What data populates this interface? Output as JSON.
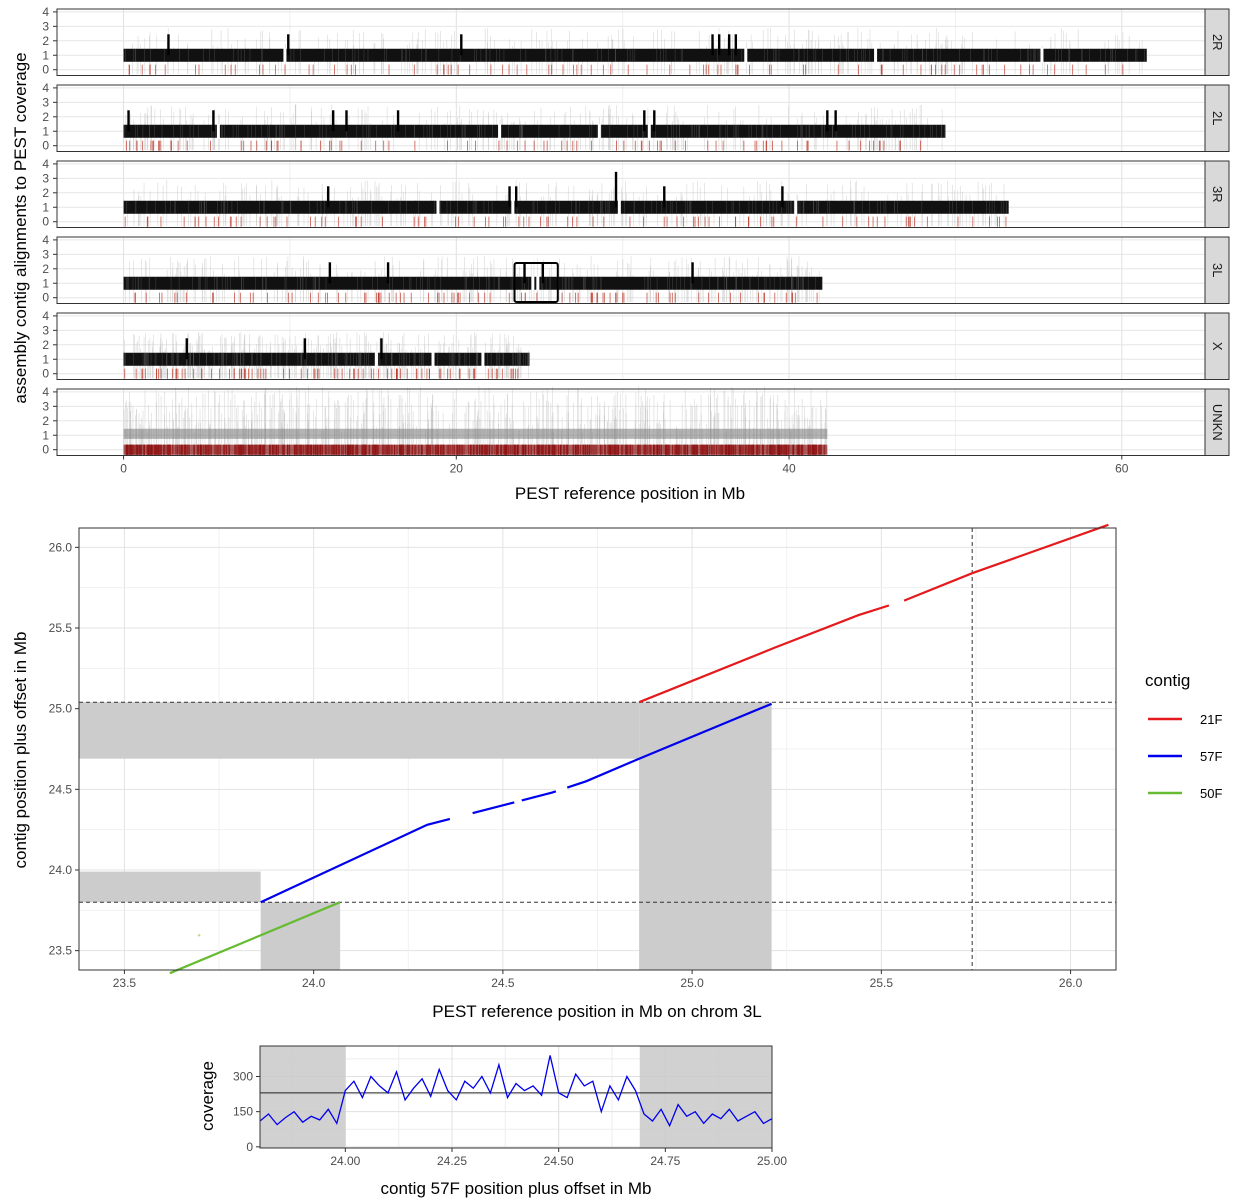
{
  "chart_data": [
    {
      "id": "coverage-facets",
      "type": "bar",
      "xlabel": "PEST reference position in Mb",
      "ylabel": "assembly contig alignments to PEST coverage",
      "xlim": [
        -4,
        65
      ],
      "ylim": [
        -0.4,
        4.2
      ],
      "x_ticks": [
        0,
        20,
        40,
        60
      ],
      "y_ticks": [
        0,
        1,
        2,
        3,
        4
      ],
      "grid": true,
      "facets": [
        {
          "name": "2R",
          "length": 61.5,
          "baseline": 1,
          "spikes": [
            {
              "x": 2.7,
              "y": 2
            },
            {
              "x": 9.9,
              "y": 2
            },
            {
              "x": 20.3,
              "y": 2
            },
            {
              "x": 35.4,
              "y": 2
            },
            {
              "x": 35.8,
              "y": 2
            },
            {
              "x": 36.4,
              "y": 2
            },
            {
              "x": 36.8,
              "y": 2
            }
          ],
          "gaps": [
            9.7,
            37.4,
            45.2,
            55.2
          ]
        },
        {
          "name": "2L",
          "length": 49.4,
          "baseline": 1,
          "spikes": [
            {
              "x": 0.3,
              "y": 2
            },
            {
              "x": 5.4,
              "y": 2
            },
            {
              "x": 12.6,
              "y": 2
            },
            {
              "x": 13.4,
              "y": 2
            },
            {
              "x": 16.5,
              "y": 2
            },
            {
              "x": 31.3,
              "y": 2
            },
            {
              "x": 31.9,
              "y": 2
            },
            {
              "x": 42.3,
              "y": 2
            },
            {
              "x": 42.8,
              "y": 2
            }
          ],
          "gaps": [
            5.7,
            22.6,
            28.6,
            31.6
          ]
        },
        {
          "name": "3R",
          "length": 53.2,
          "baseline": 1,
          "spikes": [
            {
              "x": 12.3,
              "y": 2
            },
            {
              "x": 23.2,
              "y": 2
            },
            {
              "x": 23.6,
              "y": 2
            },
            {
              "x": 29.6,
              "y": 3
            },
            {
              "x": 32.5,
              "y": 2
            },
            {
              "x": 39.6,
              "y": 2
            }
          ],
          "gaps": [
            18.9,
            23.4,
            29.8,
            40.4
          ]
        },
        {
          "name": "3L",
          "length": 42.0,
          "baseline": 1,
          "spikes": [
            {
              "x": 12.4,
              "y": 2
            },
            {
              "x": 15.9,
              "y": 2
            },
            {
              "x": 24.1,
              "y": 2
            },
            {
              "x": 25.2,
              "y": 2
            },
            {
              "x": 34.2,
              "y": 2
            }
          ],
          "gaps": [
            24.6,
            24.9
          ],
          "highlight_box": {
            "x0": 23.5,
            "x1": 26.1,
            "y0": -0.3,
            "y1": 2.4
          }
        },
        {
          "name": "X",
          "length": 24.4,
          "baseline": 1,
          "spikes": [
            {
              "x": 3.8,
              "y": 2
            },
            {
              "x": 10.9,
              "y": 2
            },
            {
              "x": 15.5,
              "y": 2
            }
          ],
          "gaps": [
            15.2,
            18.6,
            21.6
          ]
        },
        {
          "name": "UNKN",
          "length": 42.3,
          "baseline": 0.3,
          "spikes": [],
          "gaps": []
        }
      ]
    },
    {
      "id": "dotplot",
      "type": "line",
      "xlabel": "PEST reference position in Mb on chrom 3L",
      "ylabel": "contig position plus offset in Mb",
      "xlim": [
        23.38,
        26.12
      ],
      "ylim": [
        23.38,
        26.12
      ],
      "x_ticks": [
        23.5,
        24.0,
        24.5,
        25.0,
        25.5,
        26.0
      ],
      "y_ticks": [
        23.5,
        24.0,
        24.5,
        25.0,
        25.5,
        26.0
      ],
      "grid": true,
      "legend_title": "contig",
      "legend_position": "right",
      "series": [
        {
          "name": "21F",
          "color": "#e41a1c",
          "x": [
            24.86,
            25.22,
            25.44,
            25.56,
            25.74,
            26.1
          ],
          "y": [
            25.04,
            25.38,
            25.58,
            25.67,
            25.84,
            26.14
          ]
        },
        {
          "name": "57F",
          "color": "#0000ee",
          "x": [
            23.86,
            24.3,
            24.63,
            24.72,
            24.86,
            25.21
          ],
          "y": [
            23.8,
            24.28,
            24.48,
            24.55,
            24.69,
            25.03
          ]
        },
        {
          "name": "50F",
          "color": "#66bb33",
          "x": [
            23.62,
            24.07
          ],
          "y": [
            23.36,
            23.8
          ]
        }
      ],
      "gaps": [
        {
          "series": "57F",
          "x": [
            24.36,
            24.42
          ]
        },
        {
          "series": "57F",
          "x": [
            24.53,
            24.55
          ]
        },
        {
          "series": "57F",
          "x": [
            24.64,
            24.67
          ]
        },
        {
          "series": "21F",
          "x": [
            25.52,
            25.56
          ]
        }
      ],
      "shaded_vertical": [
        [
          23.86,
          24.07
        ],
        [
          24.86,
          25.21
        ]
      ],
      "shaded_horizontal": [
        [
          24.69,
          25.04
        ],
        [
          23.8,
          23.99
        ]
      ],
      "dashed_h": [
        25.04,
        23.8
      ],
      "dashed_v": [
        25.74
      ]
    },
    {
      "id": "coverage-57F",
      "type": "line",
      "xlabel": "contig 57F position plus offset in Mb",
      "ylabel": "coverage",
      "xlim": [
        23.8,
        25.0
      ],
      "ylim": [
        -5,
        430
      ],
      "x_ticks": [
        24.0,
        24.25,
        24.5,
        24.75,
        25.0
      ],
      "x_tick_labels": [
        "24.00",
        "24.25",
        "24.50",
        "24.75",
        "25.00"
      ],
      "y_ticks": [
        0,
        150,
        300
      ],
      "grid": true,
      "shaded": [
        [
          23.8,
          24.0
        ],
        [
          24.69,
          25.0
        ]
      ],
      "hline": 230,
      "series": [
        {
          "name": "coverage",
          "color": "#0000ee",
          "x": [
            23.8,
            23.82,
            23.84,
            23.86,
            23.88,
            23.9,
            23.92,
            23.94,
            23.96,
            23.98,
            24.0,
            24.02,
            24.04,
            24.06,
            24.08,
            24.1,
            24.12,
            24.14,
            24.16,
            24.18,
            24.2,
            24.22,
            24.24,
            24.26,
            24.28,
            24.3,
            24.32,
            24.34,
            24.36,
            24.38,
            24.4,
            24.42,
            24.44,
            24.46,
            24.48,
            24.5,
            24.52,
            24.54,
            24.56,
            24.58,
            24.6,
            24.62,
            24.64,
            24.66,
            24.68,
            24.7,
            24.72,
            24.74,
            24.76,
            24.78,
            24.8,
            24.82,
            24.84,
            24.86,
            24.88,
            24.9,
            24.92,
            24.94,
            24.96,
            24.98,
            25.0
          ],
          "y": [
            110,
            140,
            95,
            125,
            150,
            105,
            130,
            115,
            160,
            100,
            240,
            280,
            210,
            300,
            260,
            230,
            320,
            200,
            250,
            290,
            215,
            330,
            240,
            200,
            280,
            250,
            300,
            230,
            350,
            210,
            270,
            240,
            260,
            220,
            390,
            230,
            210,
            310,
            260,
            280,
            150,
            260,
            200,
            300,
            240,
            140,
            110,
            160,
            90,
            180,
            130,
            150,
            100,
            140,
            120,
            160,
            110,
            130,
            150,
            100,
            120
          ]
        }
      ]
    }
  ]
}
